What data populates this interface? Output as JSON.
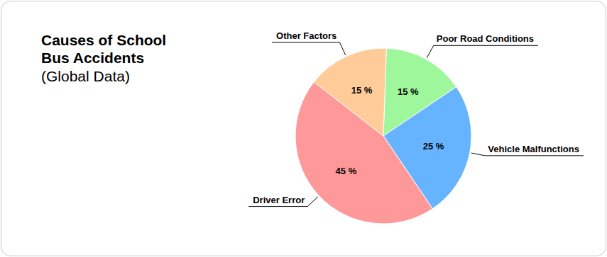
{
  "chart_data": {
    "type": "pie",
    "title": "Causes of School Bus Accidents",
    "subtitle": "(Global Data)",
    "categories": [
      "Poor Road Conditions",
      "Vehicle Malfunctions",
      "Driver Error",
      "Other Factors"
    ],
    "values": [
      15,
      25,
      45,
      15
    ],
    "value_labels": [
      "15 %",
      "25 %",
      "45 %",
      "15 %"
    ],
    "colors": [
      "#9ef79a",
      "#66b3ff",
      "#ff9999",
      "#ffcc99"
    ],
    "data_labels": true
  }
}
